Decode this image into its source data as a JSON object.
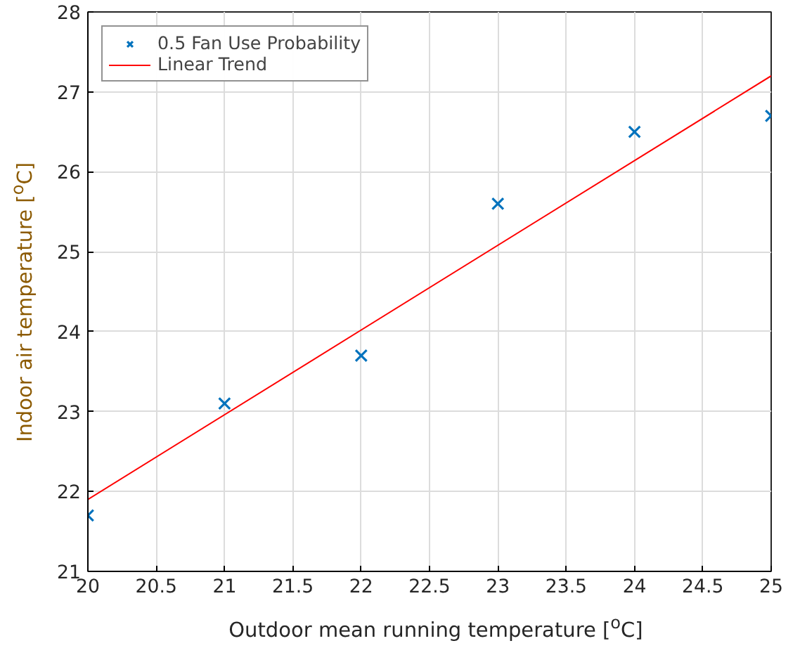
{
  "chart_data": {
    "type": "scatter",
    "xlabel": "Outdoor mean running temperature [$^{o}$C]",
    "ylabel": "Indoor air temperature [$^{o}$C]",
    "x": [
      20,
      21,
      22,
      23,
      24,
      25
    ],
    "series": [
      {
        "name": "0.5 Fan Use Probability",
        "color": "#0072bd",
        "marker": "cross",
        "values": [
          21.7,
          23.1,
          23.7,
          25.6,
          26.5,
          26.7
        ]
      },
      {
        "name": "Linear Trend",
        "type": "line",
        "color": "#ff0000",
        "line_style": "solid",
        "marker": "none",
        "x": [
          20,
          25
        ],
        "values": [
          21.9,
          27.2
        ]
      }
    ],
    "xlim": [
      20,
      25
    ],
    "ylim": [
      21,
      28
    ],
    "xticks": [
      20,
      20.5,
      21,
      21.5,
      22,
      22.5,
      23,
      23.5,
      24,
      24.5,
      25
    ],
    "yticks": [
      21,
      22,
      23,
      24,
      25,
      26,
      27,
      28
    ],
    "grid": true,
    "legend": "top left"
  }
}
